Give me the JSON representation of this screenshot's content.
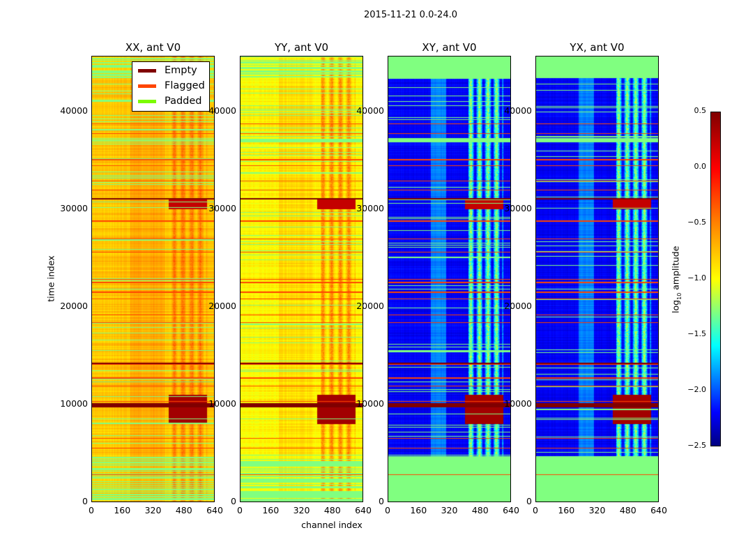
{
  "chart_data": {
    "type": "heatmap",
    "title": "2015-11-21 0.0-24.0",
    "xlabel": "channel index",
    "ylabel": "time index",
    "xlim": [
      0,
      640
    ],
    "ylim": [
      0,
      45650
    ],
    "x_ticks": [
      "0",
      "160",
      "320",
      "480",
      "640"
    ],
    "x_tick_values": [
      0,
      160,
      320,
      480,
      640
    ],
    "y_ticks": [
      "0",
      "10000",
      "20000",
      "30000",
      "40000"
    ],
    "y_tick_values": [
      0,
      10000,
      20000,
      30000,
      40000
    ],
    "panels": [
      {
        "title": "XX, ant V0",
        "base_level": -0.45,
        "band_boost": 0.25
      },
      {
        "title": "YY, ant V0",
        "base_level": -0.6,
        "band_boost": 0.35
      },
      {
        "title": "XY, ant V0",
        "base_level": -2.15,
        "band_boost": 1.3
      },
      {
        "title": "YX, ant V0",
        "base_level": -2.15,
        "band_boost": 1.3
      }
    ],
    "high_amplitude_channel_range": [
      420,
      600
    ],
    "colorbar": {
      "label_main": "log",
      "label_sub": "10",
      "label_rest": " amplitude",
      "range": [
        -2.5,
        0.5
      ],
      "ticks": [
        "0.5",
        "0.0",
        "−0.5",
        "−1.0",
        "−1.5",
        "−2.0",
        "−2.5"
      ],
      "tick_values": [
        0.5,
        0.0,
        -0.5,
        -1.0,
        -1.5,
        -2.0,
        -2.5
      ],
      "colormap": "jet"
    },
    "legend": {
      "placement": "top-right of first panel",
      "entries": [
        {
          "label": "Empty",
          "color": "#800000"
        },
        {
          "label": "Flagged",
          "color": "#ff4500"
        },
        {
          "label": "Padded",
          "color": "#7cfc00"
        }
      ]
    },
    "empty_time_ranges": [
      [
        9700,
        10100
      ],
      [
        31050,
        31150
      ],
      [
        14150,
        14250
      ]
    ],
    "flagged_times": [
      2800,
      5500,
      6500,
      10300,
      11900,
      12700,
      14100,
      18400,
      19200,
      20800,
      21500,
      22500,
      22800,
      25600,
      27000,
      28800,
      32000,
      32900,
      34500,
      35100,
      37800,
      38800
    ],
    "padded_time_ranges": [
      [
        0,
        4700
      ],
      [
        36900,
        37300
      ],
      [
        43500,
        45650
      ]
    ]
  }
}
